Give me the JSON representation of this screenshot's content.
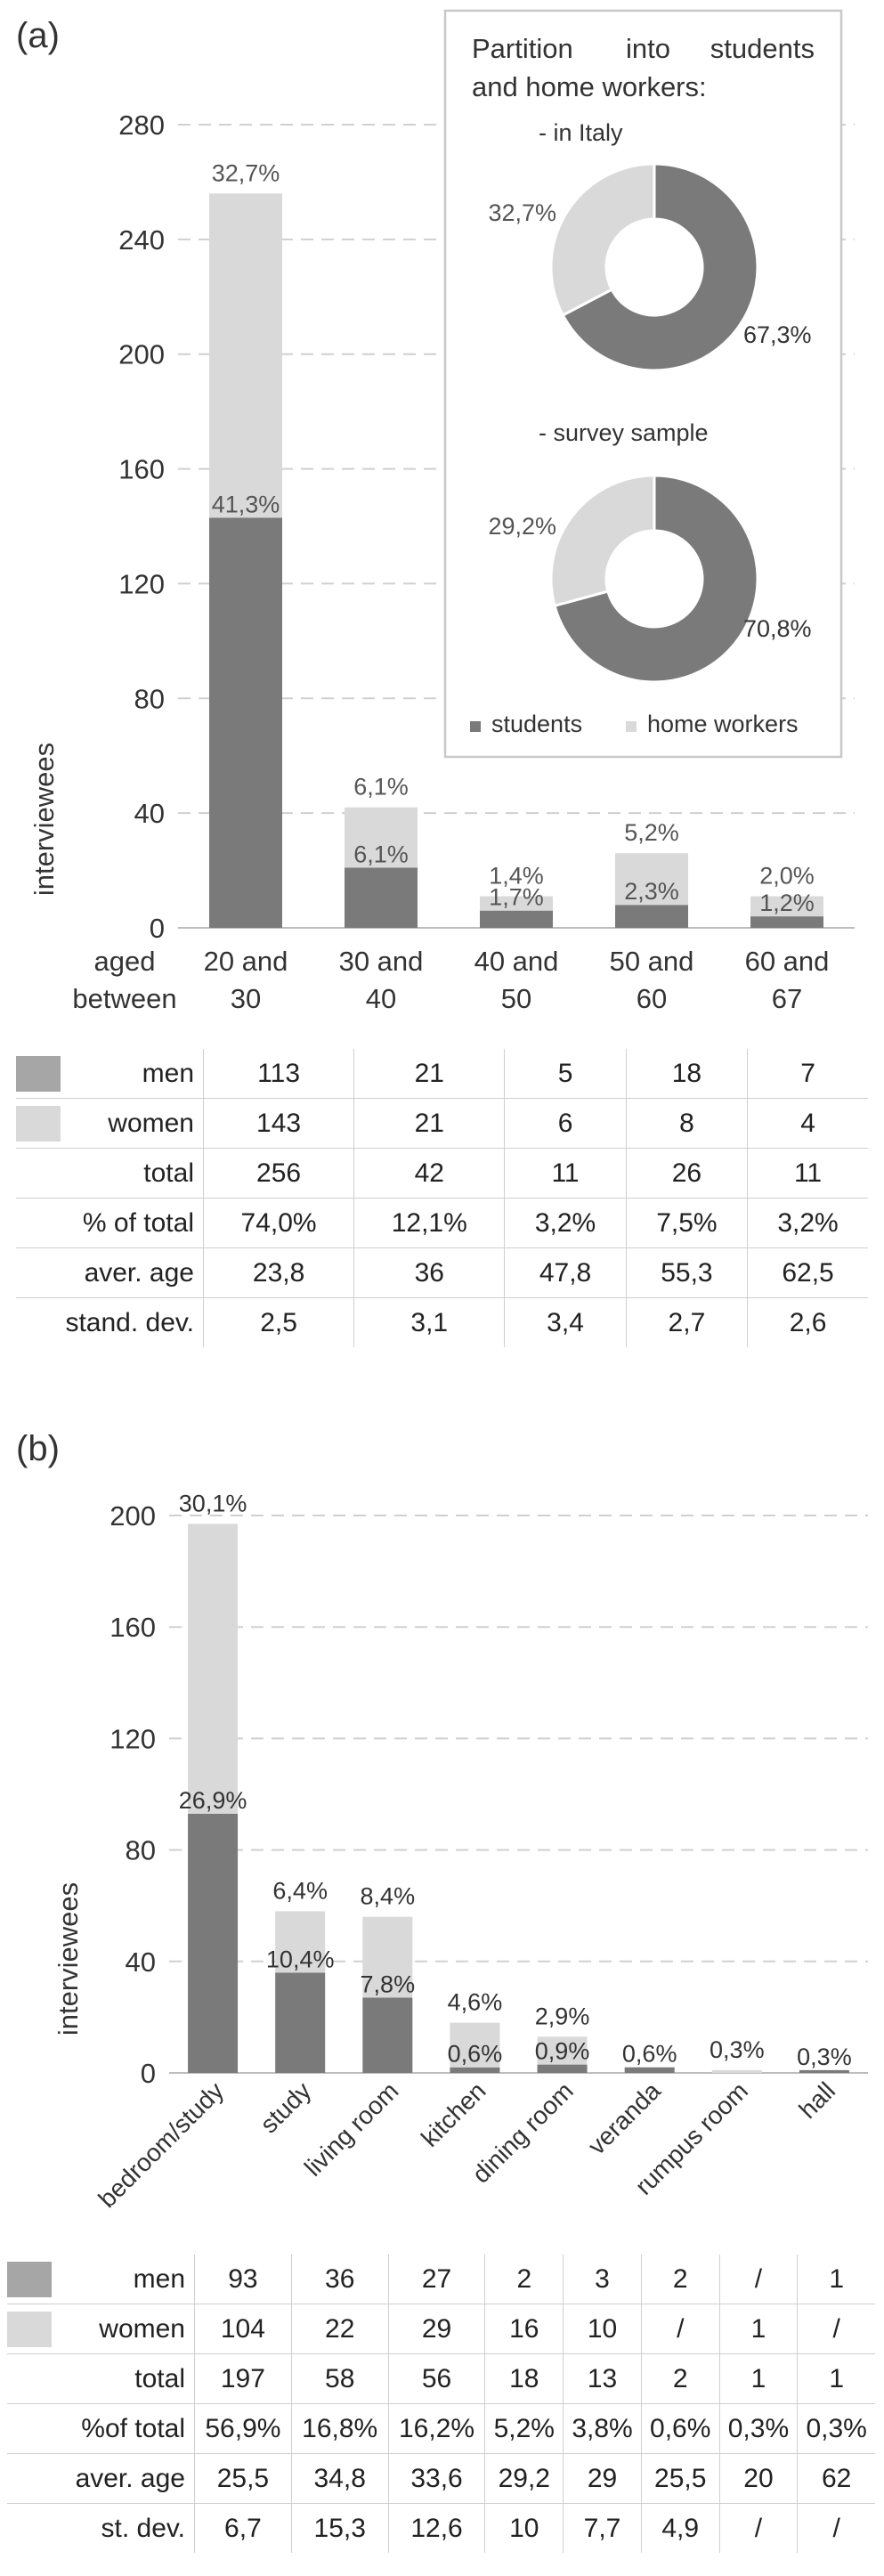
{
  "chart_data": [
    {
      "type": "bar",
      "panel_label": "(a)",
      "stacked": true,
      "categories": [
        "20 and 30",
        "30 and 40",
        "40 and 50",
        "50 and 60",
        "60 and 67"
      ],
      "category_lines": [
        [
          "20 and",
          "30"
        ],
        [
          "30 and",
          "40"
        ],
        [
          "40 and",
          "50"
        ],
        [
          "50 and",
          "60"
        ],
        [
          "60 and",
          "67"
        ]
      ],
      "x_prefix_lines": [
        "aged",
        "between"
      ],
      "ylabel": "interviewees",
      "ylim": [
        0,
        280
      ],
      "yticks": [
        0,
        40,
        80,
        120,
        160,
        200,
        240,
        280
      ],
      "grid": "dashed horizontal",
      "series": [
        {
          "name": "students",
          "values": [
            143,
            21,
            6,
            8,
            4
          ],
          "labels": [
            "41,3%",
            "6,1%",
            "1,7%",
            "2,3%",
            "1,2%"
          ]
        },
        {
          "name": "home workers",
          "values": [
            113,
            21,
            5,
            18,
            7
          ],
          "labels": [
            "32,7%",
            "6,1%",
            "1,4%",
            "5,2%",
            "2,0%"
          ]
        }
      ],
      "inset": {
        "title": "Partition into students and home workers:",
        "title_lines": [
          [
            "Partition",
            "into",
            "students"
          ],
          [
            "and home workers:"
          ]
        ],
        "legend_position": "bottom",
        "pies": [
          {
            "label": "-    in Italy",
            "values": [
              67.3,
              32.7
            ],
            "value_labels": [
              "67,3%",
              "32,7%"
            ]
          },
          {
            "label": "-    survey sample",
            "values": [
              70.8,
              29.2
            ],
            "value_labels": [
              "70,8%",
              "29,2%"
            ]
          }
        ],
        "legend": [
          "students",
          "home workers"
        ]
      }
    },
    {
      "type": "bar",
      "panel_label": "(b)",
      "stacked": true,
      "categories": [
        "bedroom/study",
        "study",
        "living room",
        "kitchen",
        "dining room",
        "veranda",
        "rumpus room",
        "hall"
      ],
      "ylabel": "interviewees",
      "ylim": [
        0,
        200
      ],
      "yticks": [
        0,
        40,
        80,
        120,
        160,
        200
      ],
      "grid": "dashed horizontal",
      "series": [
        {
          "name": "students",
          "values": [
            93,
            36,
            27,
            2,
            3,
            2,
            0,
            1
          ],
          "labels": [
            "26,9%",
            "10,4%",
            "7,8%",
            "0,6%",
            "0,9%",
            "0,6%",
            "",
            "0,3%"
          ]
        },
        {
          "name": "home workers",
          "values": [
            104,
            22,
            29,
            16,
            10,
            0,
            1,
            0
          ],
          "labels": [
            "30,1%",
            "6,4%",
            "8,4%",
            "4,6%",
            "2,9%",
            "",
            "0,3%",
            ""
          ]
        }
      ]
    }
  ],
  "colors": {
    "dark": "#7a7a7a",
    "light": "#d9d9d9",
    "swatch_dark": "#a6a6a6",
    "swatch_light": "#d9d9d9"
  },
  "table_a": {
    "rows": [
      {
        "label": "men",
        "swatch": "dark",
        "cells": [
          "113",
          "21",
          "5",
          "18",
          "7"
        ]
      },
      {
        "label": "women",
        "swatch": "light",
        "cells": [
          "143",
          "21",
          "6",
          "8",
          "4"
        ]
      },
      {
        "label": "total",
        "cells": [
          "256",
          "42",
          "11",
          "26",
          "11"
        ]
      },
      {
        "label": "% of total",
        "cells": [
          "74,0%",
          "12,1%",
          "3,2%",
          "7,5%",
          "3,2%"
        ]
      },
      {
        "label": "aver. age",
        "cells": [
          "23,8",
          "36",
          "47,8",
          "55,3",
          "62,5"
        ]
      },
      {
        "label": "stand. dev.",
        "cells": [
          "2,5",
          "3,1",
          "3,4",
          "2,7",
          "2,6"
        ]
      }
    ]
  },
  "table_b": {
    "rows": [
      {
        "label": "men",
        "swatch": "dark",
        "cells": [
          "93",
          "36",
          "27",
          "2",
          "3",
          "2",
          "/",
          "1"
        ]
      },
      {
        "label": "women",
        "swatch": "light",
        "cells": [
          "104",
          "22",
          "29",
          "16",
          "10",
          "/",
          "1",
          "/"
        ]
      },
      {
        "label": "total",
        "cells": [
          "197",
          "58",
          "56",
          "18",
          "13",
          "2",
          "1",
          "1"
        ]
      },
      {
        "label": "%of total",
        "cells": [
          "56,9%",
          "16,8%",
          "16,2%",
          "5,2%",
          "3,8%",
          "0,6%",
          "0,3%",
          "0,3%"
        ]
      },
      {
        "label": "aver. age",
        "cells": [
          "25,5",
          "34,8",
          "33,6",
          "29,2",
          "29",
          "25,5",
          "20",
          "62"
        ]
      },
      {
        "label": "st. dev.",
        "cells": [
          "6,7",
          "15,3",
          "12,6",
          "10",
          "7,7",
          "4,9",
          "/",
          "/"
        ]
      }
    ]
  }
}
